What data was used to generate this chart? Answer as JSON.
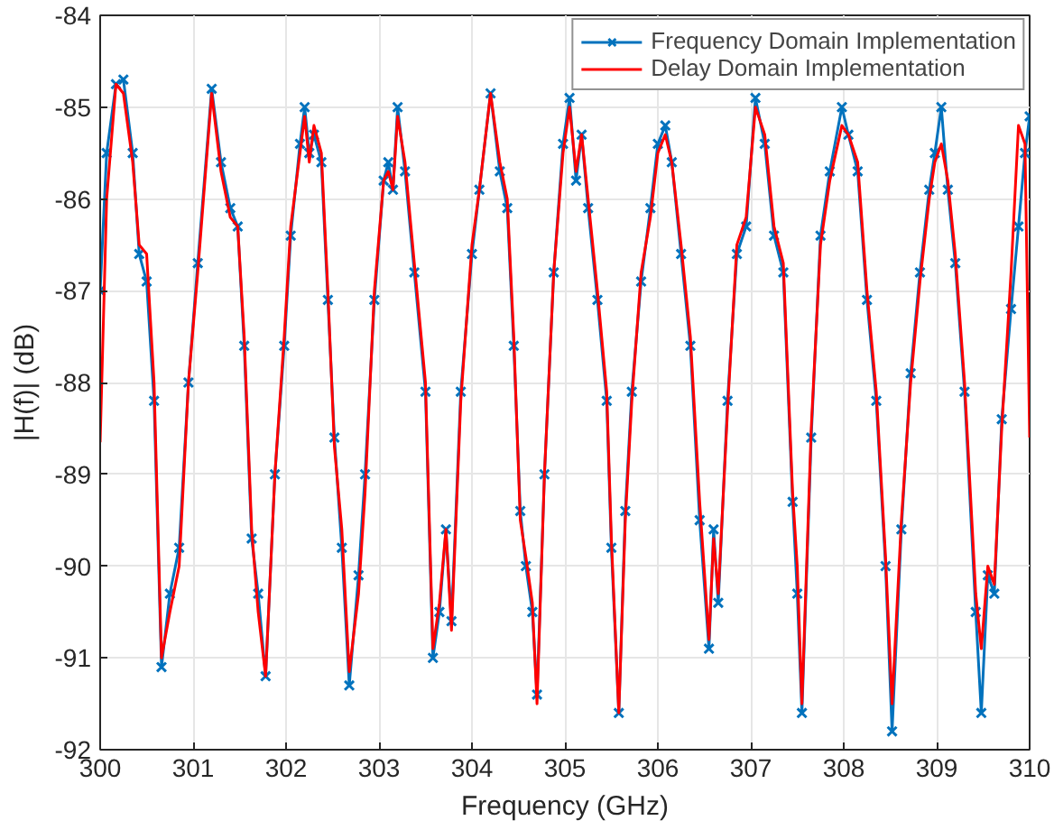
{
  "chart_data": {
    "type": "line",
    "xlabel": "Frequency (GHz)",
    "ylabel": "|H(f)| (dB)",
    "xlim": [
      300,
      310
    ],
    "ylim": [
      -92,
      -84
    ],
    "xticks": [
      300,
      301,
      302,
      303,
      304,
      305,
      306,
      307,
      308,
      309,
      310
    ],
    "yticks": [
      -92,
      -91,
      -90,
      -89,
      -88,
      -87,
      -86,
      -85,
      -84
    ],
    "grid": true,
    "legend": "top right",
    "series": [
      {
        "name": "Frequency Domain Implementation",
        "color": "#0072bd",
        "marker": "cross",
        "x": [
          300.0,
          300.07,
          300.17,
          300.25,
          300.35,
          300.42,
          300.5,
          300.58,
          300.66,
          300.75,
          300.85,
          300.95,
          301.05,
          301.2,
          301.3,
          301.4,
          301.48,
          301.55,
          301.63,
          301.7,
          301.78,
          301.88,
          301.98,
          302.05,
          302.15,
          302.2,
          302.25,
          302.3,
          302.38,
          302.45,
          302.52,
          302.6,
          302.68,
          302.78,
          302.85,
          302.95,
          303.05,
          303.1,
          303.15,
          303.2,
          303.28,
          303.38,
          303.5,
          303.58,
          303.65,
          303.72,
          303.78,
          303.88,
          304.0,
          304.08,
          304.2,
          304.3,
          304.38,
          304.45,
          304.52,
          304.58,
          304.65,
          304.7,
          304.78,
          304.88,
          304.98,
          305.05,
          305.12,
          305.18,
          305.25,
          305.35,
          305.45,
          305.5,
          305.58,
          305.65,
          305.72,
          305.82,
          305.92,
          306.0,
          306.08,
          306.15,
          306.25,
          306.35,
          306.45,
          306.55,
          306.6,
          306.65,
          306.75,
          306.85,
          306.95,
          307.05,
          307.15,
          307.25,
          307.35,
          307.45,
          307.5,
          307.55,
          307.65,
          307.75,
          307.85,
          307.98,
          308.05,
          308.15,
          308.25,
          308.35,
          308.45,
          308.52,
          308.62,
          308.72,
          308.82,
          308.92,
          308.98,
          309.05,
          309.12,
          309.2,
          309.3,
          309.42,
          309.48,
          309.55,
          309.62,
          309.7,
          309.8,
          309.88,
          309.95,
          310.0
        ],
        "values": [
          -87.0,
          -85.5,
          -84.75,
          -84.7,
          -85.5,
          -86.6,
          -86.9,
          -88.2,
          -91.1,
          -90.3,
          -89.8,
          -88.0,
          -86.7,
          -84.8,
          -85.6,
          -86.1,
          -86.3,
          -87.6,
          -89.7,
          -90.3,
          -91.2,
          -89.0,
          -87.6,
          -86.4,
          -85.4,
          -85.0,
          -85.5,
          -85.3,
          -85.6,
          -87.1,
          -88.6,
          -89.8,
          -91.3,
          -90.1,
          -89.0,
          -87.1,
          -85.8,
          -85.6,
          -85.9,
          -85.0,
          -85.7,
          -86.8,
          -88.1,
          -91.0,
          -90.5,
          -89.6,
          -90.6,
          -88.1,
          -86.6,
          -85.9,
          -84.85,
          -85.7,
          -86.1,
          -87.6,
          -89.4,
          -90.0,
          -90.5,
          -91.4,
          -89.0,
          -86.8,
          -85.4,
          -84.9,
          -85.8,
          -85.3,
          -86.1,
          -87.1,
          -88.2,
          -89.8,
          -91.6,
          -89.4,
          -88.1,
          -86.9,
          -86.1,
          -85.4,
          -85.2,
          -85.6,
          -86.6,
          -87.6,
          -89.5,
          -90.9,
          -89.6,
          -90.4,
          -88.2,
          -86.6,
          -86.3,
          -84.9,
          -85.4,
          -86.4,
          -86.8,
          -89.3,
          -90.3,
          -91.6,
          -88.6,
          -86.4,
          -85.7,
          -85.0,
          -85.3,
          -85.7,
          -87.1,
          -88.2,
          -90.0,
          -91.8,
          -89.6,
          -87.9,
          -86.8,
          -85.9,
          -85.5,
          -85.0,
          -85.9,
          -86.7,
          -88.1,
          -90.5,
          -91.6,
          -90.1,
          -90.3,
          -88.4,
          -87.2,
          -86.3,
          -85.5,
          -85.1
        ]
      },
      {
        "name": "Delay Domain Implementation",
        "color": "#ff0000",
        "marker": "none",
        "x": [
          300.0,
          300.07,
          300.17,
          300.25,
          300.35,
          300.42,
          300.5,
          300.58,
          300.66,
          300.75,
          300.85,
          300.95,
          301.05,
          301.2,
          301.3,
          301.4,
          301.48,
          301.55,
          301.63,
          301.7,
          301.78,
          301.88,
          301.98,
          302.05,
          302.15,
          302.2,
          302.25,
          302.3,
          302.38,
          302.45,
          302.52,
          302.6,
          302.68,
          302.78,
          302.85,
          302.95,
          303.05,
          303.1,
          303.15,
          303.2,
          303.28,
          303.38,
          303.5,
          303.58,
          303.65,
          303.72,
          303.78,
          303.88,
          304.0,
          304.08,
          304.2,
          304.3,
          304.38,
          304.45,
          304.52,
          304.58,
          304.65,
          304.7,
          304.78,
          304.88,
          304.98,
          305.05,
          305.12,
          305.18,
          305.25,
          305.35,
          305.45,
          305.5,
          305.58,
          305.65,
          305.72,
          305.82,
          305.92,
          306.0,
          306.08,
          306.15,
          306.25,
          306.35,
          306.45,
          306.55,
          306.6,
          306.65,
          306.75,
          306.85,
          306.95,
          307.05,
          307.15,
          307.25,
          307.35,
          307.45,
          307.5,
          307.55,
          307.65,
          307.75,
          307.85,
          307.98,
          308.05,
          308.15,
          308.25,
          308.35,
          308.45,
          308.52,
          308.62,
          308.72,
          308.82,
          308.92,
          308.98,
          309.05,
          309.12,
          309.2,
          309.3,
          309.42,
          309.48,
          309.55,
          309.62,
          309.7,
          309.8,
          309.88,
          309.95,
          310.0
        ],
        "values": [
          -88.65,
          -86.0,
          -84.75,
          -84.85,
          -85.6,
          -86.5,
          -86.6,
          -88.0,
          -91.0,
          -90.5,
          -90.0,
          -88.0,
          -86.8,
          -84.85,
          -85.7,
          -86.2,
          -86.3,
          -87.5,
          -89.6,
          -90.5,
          -91.2,
          -89.0,
          -87.5,
          -86.3,
          -85.5,
          -85.1,
          -85.6,
          -85.2,
          -85.5,
          -87.0,
          -88.7,
          -89.6,
          -91.15,
          -90.3,
          -89.2,
          -87.0,
          -85.8,
          -85.7,
          -85.9,
          -85.1,
          -85.6,
          -86.7,
          -88.0,
          -90.9,
          -90.4,
          -89.6,
          -90.7,
          -88.2,
          -86.5,
          -85.9,
          -84.85,
          -85.6,
          -86.0,
          -87.5,
          -89.5,
          -89.9,
          -90.4,
          -91.5,
          -89.0,
          -86.8,
          -85.5,
          -85.0,
          -85.7,
          -85.3,
          -86.0,
          -87.0,
          -88.1,
          -89.7,
          -91.6,
          -89.5,
          -88.2,
          -86.8,
          -86.2,
          -85.5,
          -85.3,
          -85.6,
          -86.5,
          -87.5,
          -89.3,
          -90.8,
          -89.7,
          -90.3,
          -88.3,
          -86.5,
          -86.2,
          -85.0,
          -85.3,
          -86.3,
          -86.7,
          -89.2,
          -90.0,
          -91.5,
          -88.5,
          -86.5,
          -85.8,
          -85.2,
          -85.3,
          -85.6,
          -87.0,
          -88.1,
          -89.9,
          -91.5,
          -89.5,
          -88.0,
          -86.9,
          -86.0,
          -85.6,
          -85.4,
          -85.8,
          -86.6,
          -88.0,
          -90.3,
          -90.9,
          -90.0,
          -90.2,
          -88.5,
          -86.8,
          -85.2,
          -85.4,
          -88.6
        ]
      }
    ]
  }
}
